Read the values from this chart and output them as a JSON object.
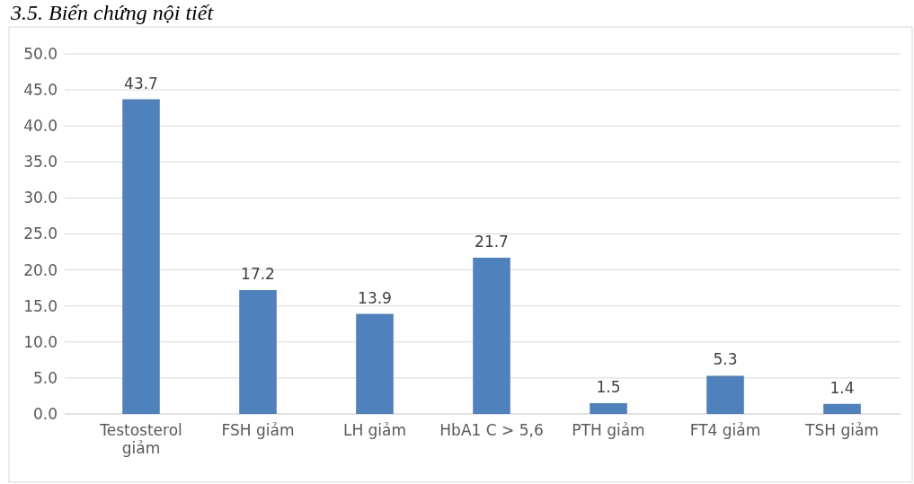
{
  "chart_data": {
    "type": "bar",
    "title": "3.5. Biến chứng nội tiết",
    "categories": [
      "Testosterol giảm",
      "FSH giảm",
      "LH giảm",
      "HbA1 C > 5,6",
      "PTH giảm",
      "FT4 giảm",
      "TSH giảm"
    ],
    "values": [
      43.7,
      17.2,
      13.9,
      21.7,
      1.5,
      5.3,
      1.4
    ],
    "color": "#4f81bd",
    "ylim": [
      0,
      50
    ],
    "yticks": [
      {
        "value": 0,
        "label": "0.0"
      },
      {
        "value": 5,
        "label": "5.0"
      },
      {
        "value": 10,
        "label": "10.0"
      },
      {
        "value": 15,
        "label": "15.0"
      },
      {
        "value": 20,
        "label": "20.0"
      },
      {
        "value": 25,
        "label": "25.0"
      },
      {
        "value": 30,
        "label": "30.0"
      },
      {
        "value": 35,
        "label": "35.0"
      },
      {
        "value": 40,
        "label": "40.0"
      },
      {
        "value": 45,
        "label": "45.0"
      },
      {
        "value": 50,
        "label": "50.0"
      }
    ],
    "value_labels": [
      "43.7",
      "17.2",
      "13.9",
      "21.7",
      "1.5",
      "5.3",
      "1.4"
    ],
    "grid": "y"
  }
}
